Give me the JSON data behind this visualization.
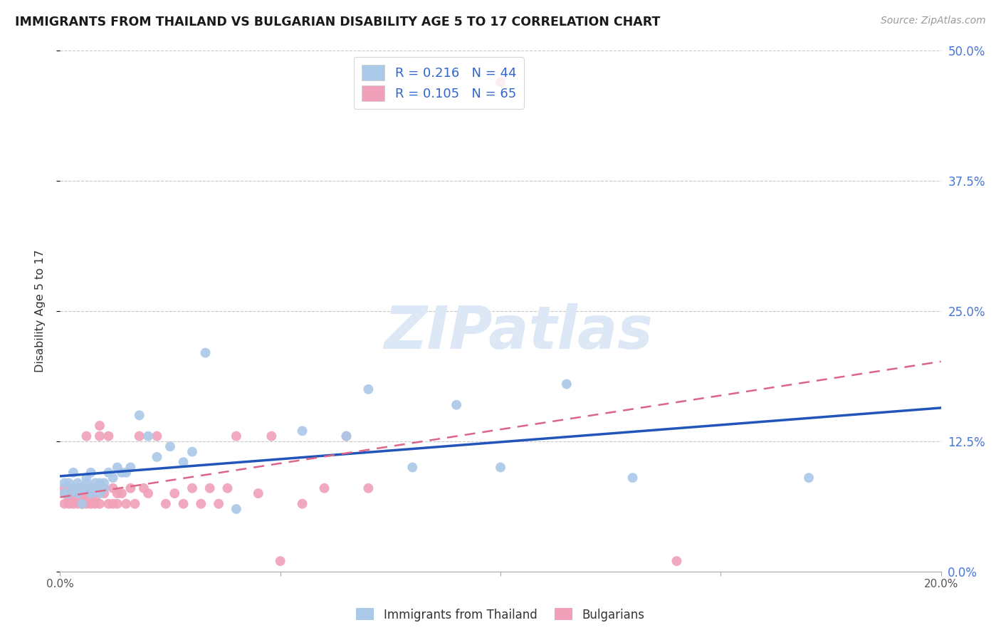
{
  "title": "IMMIGRANTS FROM THAILAND VS BULGARIAN DISABILITY AGE 5 TO 17 CORRELATION CHART",
  "source": "Source: ZipAtlas.com",
  "ylabel": "Disability Age 5 to 17",
  "xlim": [
    0.0,
    0.2
  ],
  "ylim": [
    0.0,
    0.5
  ],
  "xticks": [
    0.0,
    0.05,
    0.1,
    0.15,
    0.2
  ],
  "xtick_labels": [
    "0.0%",
    "",
    "",
    "",
    "20.0%"
  ],
  "yticks_right": [
    0.0,
    0.125,
    0.25,
    0.375,
    0.5
  ],
  "ytick_labels_right": [
    "0.0%",
    "12.5%",
    "25.0%",
    "37.5%",
    "50.0%"
  ],
  "grid_color": "#c8c8c8",
  "background_color": "#ffffff",
  "thailand_color": "#aac8e8",
  "bulgarian_color": "#f0a0b8",
  "thailand_line_color": "#2255bb",
  "bulgarian_line_color": "#dd6688",
  "legend_R1": "0.216",
  "legend_N1": "44",
  "legend_R2": "0.105",
  "legend_N2": "65",
  "thailand_x": [
    0.001,
    0.001,
    0.002,
    0.002,
    0.003,
    0.003,
    0.004,
    0.004,
    0.005,
    0.005,
    0.006,
    0.006,
    0.006,
    0.007,
    0.007,
    0.008,
    0.008,
    0.009,
    0.009,
    0.01,
    0.01,
    0.011,
    0.012,
    0.013,
    0.014,
    0.015,
    0.016,
    0.018,
    0.02,
    0.022,
    0.025,
    0.028,
    0.03,
    0.033,
    0.04,
    0.055,
    0.065,
    0.07,
    0.08,
    0.09,
    0.1,
    0.115,
    0.13,
    0.17
  ],
  "thailand_y": [
    0.075,
    0.085,
    0.075,
    0.085,
    0.08,
    0.095,
    0.075,
    0.085,
    0.08,
    0.065,
    0.085,
    0.08,
    0.09,
    0.075,
    0.095,
    0.08,
    0.085,
    0.075,
    0.085,
    0.08,
    0.085,
    0.095,
    0.09,
    0.1,
    0.095,
    0.095,
    0.1,
    0.15,
    0.13,
    0.11,
    0.12,
    0.105,
    0.115,
    0.21,
    0.06,
    0.135,
    0.13,
    0.175,
    0.1,
    0.16,
    0.1,
    0.18,
    0.09,
    0.09
  ],
  "bulgarian_x": [
    0.001,
    0.001,
    0.001,
    0.002,
    0.002,
    0.002,
    0.003,
    0.003,
    0.003,
    0.003,
    0.004,
    0.004,
    0.004,
    0.004,
    0.005,
    0.005,
    0.005,
    0.005,
    0.006,
    0.006,
    0.006,
    0.006,
    0.007,
    0.007,
    0.007,
    0.008,
    0.008,
    0.008,
    0.009,
    0.009,
    0.009,
    0.01,
    0.01,
    0.011,
    0.011,
    0.012,
    0.012,
    0.013,
    0.013,
    0.014,
    0.015,
    0.016,
    0.017,
    0.018,
    0.019,
    0.02,
    0.022,
    0.024,
    0.026,
    0.028,
    0.03,
    0.032,
    0.034,
    0.036,
    0.038,
    0.04,
    0.045,
    0.048,
    0.05,
    0.055,
    0.06,
    0.065,
    0.07,
    0.1,
    0.14
  ],
  "bulgarian_y": [
    0.065,
    0.075,
    0.08,
    0.065,
    0.07,
    0.075,
    0.07,
    0.075,
    0.065,
    0.08,
    0.065,
    0.07,
    0.075,
    0.08,
    0.065,
    0.07,
    0.075,
    0.065,
    0.07,
    0.065,
    0.075,
    0.13,
    0.065,
    0.075,
    0.08,
    0.065,
    0.07,
    0.08,
    0.065,
    0.13,
    0.14,
    0.075,
    0.08,
    0.065,
    0.13,
    0.065,
    0.08,
    0.075,
    0.065,
    0.075,
    0.065,
    0.08,
    0.065,
    0.13,
    0.08,
    0.075,
    0.13,
    0.065,
    0.075,
    0.065,
    0.08,
    0.065,
    0.08,
    0.065,
    0.08,
    0.13,
    0.075,
    0.13,
    0.01,
    0.065,
    0.08,
    0.13,
    0.08,
    0.47,
    0.01
  ]
}
